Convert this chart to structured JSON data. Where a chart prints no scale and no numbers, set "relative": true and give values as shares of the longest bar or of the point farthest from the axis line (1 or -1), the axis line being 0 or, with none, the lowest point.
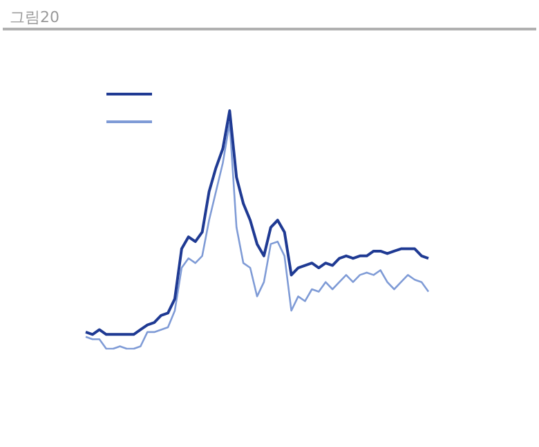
{
  "chart_data": {
    "type": "line",
    "title": "그림20",
    "relative": true,
    "grid": false,
    "line_style": "solid",
    "categories": [
      null,
      null,
      null,
      null,
      null,
      null,
      null,
      null,
      null,
      null,
      null,
      null,
      null,
      null,
      null,
      null,
      null,
      null,
      null,
      null,
      null,
      null,
      null,
      null,
      null,
      null,
      null,
      null,
      null,
      null,
      null,
      null,
      null,
      null,
      null,
      null,
      null,
      null,
      null,
      null,
      null,
      null,
      null,
      null,
      null,
      null,
      null,
      null,
      null,
      null,
      null
    ],
    "series": [
      {
        "color": "#1f3a93",
        "values": [
          0.07,
          0.06,
          0.08,
          0.06,
          0.06,
          0.06,
          0.06,
          0.06,
          0.08,
          0.1,
          0.11,
          0.14,
          0.15,
          0.21,
          0.42,
          0.47,
          0.45,
          0.49,
          0.66,
          0.76,
          0.84,
          1,
          0.72,
          0.61,
          0.54,
          0.44,
          0.39,
          0.51,
          0.54,
          0.49,
          0.31,
          0.34,
          0.35,
          0.36,
          0.34,
          0.36,
          0.35,
          0.38,
          0.39,
          0.38,
          0.39,
          0.39,
          0.41,
          0.41,
          0.4,
          0.41,
          0.42,
          0.42,
          0.42,
          0.39,
          0.38
        ]
      },
      {
        "color": "#7f9bd6",
        "values": [
          0.05,
          0.04,
          0.04,
          0,
          0,
          0.01,
          0,
          0,
          0.01,
          0.07,
          0.07,
          0.08,
          0.09,
          0.16,
          0.34,
          0.38,
          0.36,
          0.39,
          0.54,
          0.66,
          0.78,
          0.95,
          0.51,
          0.36,
          0.34,
          0.22,
          0.28,
          0.44,
          0.45,
          0.39,
          0.16,
          0.22,
          0.2,
          0.25,
          0.24,
          0.28,
          0.25,
          0.28,
          0.31,
          0.28,
          0.31,
          0.32,
          0.31,
          0.33,
          0.28,
          0.25,
          0.28,
          0.31,
          0.29,
          0.28,
          0.24
        ]
      }
    ]
  }
}
